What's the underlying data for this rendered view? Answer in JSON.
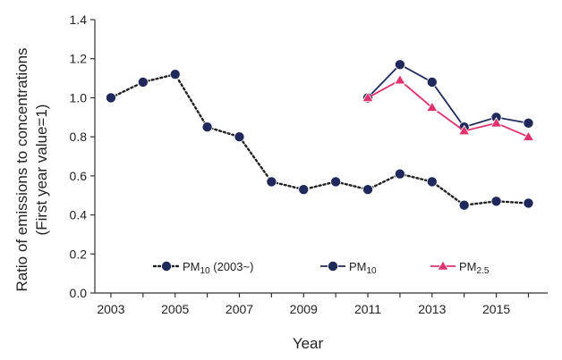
{
  "chart_data": {
    "type": "line",
    "xlabel": "Year",
    "ylabel": [
      "Ratio of emissions to concentrations",
      "(First year value=1)"
    ],
    "xlim": [
      2002.5,
      2016.6
    ],
    "ylim": [
      0,
      1.4
    ],
    "y_ticks": [
      "0.0",
      "0.2",
      "0.4",
      "0.6",
      "0.8",
      "1.0",
      "1.2",
      "1.4"
    ],
    "x_ticks": [
      "2003",
      "2005",
      "2007",
      "2009",
      "2011",
      "2013",
      "2015"
    ],
    "grid": false,
    "legend_position": "bottom",
    "series": [
      {
        "name": "PM10 (2003~)",
        "legend_base": "PM",
        "legend_sub": "10",
        "legend_suffix": " (2003~)",
        "color": "#1f2a5a",
        "line_color": "#222222",
        "line_style": "dotted",
        "marker": "circle",
        "x": [
          2003,
          2004,
          2005,
          2006,
          2007,
          2008,
          2009,
          2010,
          2011,
          2012,
          2013,
          2014,
          2015,
          2016
        ],
        "y": [
          1.0,
          1.08,
          1.12,
          0.85,
          0.8,
          0.57,
          0.53,
          0.57,
          0.53,
          0.61,
          0.57,
          0.45,
          0.47,
          0.46
        ]
      },
      {
        "name": "PM10",
        "legend_base": "PM",
        "legend_sub": "10",
        "legend_suffix": "",
        "color": "#1f2a5a",
        "line_color": "#1f2a5a",
        "line_style": "solid",
        "marker": "circle",
        "x": [
          2011,
          2012,
          2013,
          2014,
          2015,
          2016
        ],
        "y": [
          1.0,
          1.17,
          1.08,
          0.85,
          0.9,
          0.87
        ]
      },
      {
        "name": "PM2.5",
        "legend_base": "PM",
        "legend_sub": "2.5",
        "legend_suffix": "",
        "color": "#e0336e",
        "line_color": "#e0336e",
        "line_style": "solid",
        "marker": "triangle",
        "x": [
          2011,
          2012,
          2013,
          2014,
          2015,
          2016
        ],
        "y": [
          1.0,
          1.09,
          0.95,
          0.83,
          0.87,
          0.8
        ]
      }
    ]
  }
}
